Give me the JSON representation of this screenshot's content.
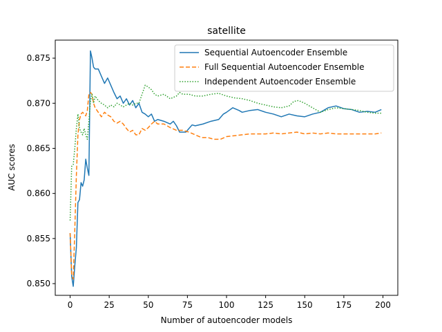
{
  "chart_data": {
    "type": "line",
    "title": "satellite",
    "xlabel": "Number of autoencoder models",
    "ylabel": "AUC scores",
    "xlim": [
      -9.5,
      209.5
    ],
    "ylim": [
      0.8487,
      0.877
    ],
    "xticks": [
      0,
      25,
      50,
      75,
      100,
      125,
      150,
      175,
      200
    ],
    "yticks": [
      0.85,
      0.855,
      0.86,
      0.865,
      0.87,
      0.875
    ],
    "ytick_labels": [
      "0.850",
      "0.855",
      "0.860",
      "0.865",
      "0.870",
      "0.875"
    ],
    "grid": false,
    "legend_position": "top-right",
    "series": [
      {
        "name": "Sequential Autoencoder Ensemble",
        "color": "#1f77b4",
        "style": "solid",
        "points": [
          [
            0,
            0.8556
          ],
          [
            1,
            0.8508
          ],
          [
            2,
            0.8497
          ],
          [
            3,
            0.852
          ],
          [
            4,
            0.854
          ],
          [
            5,
            0.859
          ],
          [
            6,
            0.8593
          ],
          [
            7,
            0.8612
          ],
          [
            8,
            0.8608
          ],
          [
            9,
            0.8615
          ],
          [
            10,
            0.8638
          ],
          [
            11,
            0.8628
          ],
          [
            12,
            0.862
          ],
          [
            13,
            0.8758
          ],
          [
            14,
            0.875
          ],
          [
            15,
            0.874
          ],
          [
            16,
            0.8738
          ],
          [
            18,
            0.8738
          ],
          [
            20,
            0.873
          ],
          [
            22,
            0.8722
          ],
          [
            24,
            0.8728
          ],
          [
            26,
            0.872
          ],
          [
            28,
            0.8712
          ],
          [
            30,
            0.8705
          ],
          [
            32,
            0.8708
          ],
          [
            34,
            0.87
          ],
          [
            36,
            0.8705
          ],
          [
            38,
            0.8698
          ],
          [
            40,
            0.8703
          ],
          [
            42,
            0.8695
          ],
          [
            44,
            0.87
          ],
          [
            46,
            0.869
          ],
          [
            48,
            0.8688
          ],
          [
            50,
            0.8685
          ],
          [
            52,
            0.8688
          ],
          [
            54,
            0.868
          ],
          [
            56,
            0.8682
          ],
          [
            60,
            0.868
          ],
          [
            64,
            0.8677
          ],
          [
            66,
            0.868
          ],
          [
            68,
            0.8675
          ],
          [
            70,
            0.8668
          ],
          [
            74,
            0.8668
          ],
          [
            76,
            0.8672
          ],
          [
            78,
            0.8676
          ],
          [
            80,
            0.8675
          ],
          [
            85,
            0.8677
          ],
          [
            90,
            0.868
          ],
          [
            95,
            0.8682
          ],
          [
            98,
            0.8688
          ],
          [
            100,
            0.869
          ],
          [
            104,
            0.8695
          ],
          [
            108,
            0.8692
          ],
          [
            110,
            0.869
          ],
          [
            115,
            0.8692
          ],
          [
            120,
            0.8693
          ],
          [
            125,
            0.869
          ],
          [
            130,
            0.8688
          ],
          [
            135,
            0.8685
          ],
          [
            140,
            0.8688
          ],
          [
            145,
            0.8686
          ],
          [
            150,
            0.8685
          ],
          [
            155,
            0.8688
          ],
          [
            160,
            0.869
          ],
          [
            165,
            0.8695
          ],
          [
            170,
            0.8697
          ],
          [
            175,
            0.8694
          ],
          [
            180,
            0.8693
          ],
          [
            185,
            0.869
          ],
          [
            190,
            0.8691
          ],
          [
            195,
            0.869
          ],
          [
            199,
            0.8693
          ]
        ]
      },
      {
        "name": "Full Sequential Autoencoder Ensemble",
        "color": "#ff7f0e",
        "style": "dashed",
        "points": [
          [
            0,
            0.8556
          ],
          [
            1,
            0.851
          ],
          [
            2,
            0.8505
          ],
          [
            3,
            0.856
          ],
          [
            4,
            0.862
          ],
          [
            5,
            0.8665
          ],
          [
            6,
            0.8682
          ],
          [
            7,
            0.8688
          ],
          [
            8,
            0.869
          ],
          [
            9,
            0.8688
          ],
          [
            10,
            0.8686
          ],
          [
            11,
            0.8692
          ],
          [
            12,
            0.871
          ],
          [
            13,
            0.8712
          ],
          [
            14,
            0.871
          ],
          [
            15,
            0.87
          ],
          [
            16,
            0.8695
          ],
          [
            18,
            0.869
          ],
          [
            20,
            0.8685
          ],
          [
            22,
            0.869
          ],
          [
            24,
            0.8687
          ],
          [
            26,
            0.8685
          ],
          [
            28,
            0.868
          ],
          [
            30,
            0.8678
          ],
          [
            32,
            0.868
          ],
          [
            34,
            0.8677
          ],
          [
            36,
            0.8672
          ],
          [
            38,
            0.8668
          ],
          [
            40,
            0.867
          ],
          [
            42,
            0.8665
          ],
          [
            44,
            0.8665
          ],
          [
            46,
            0.8672
          ],
          [
            48,
            0.867
          ],
          [
            50,
            0.8673
          ],
          [
            52,
            0.8677
          ],
          [
            54,
            0.868
          ],
          [
            56,
            0.8677
          ],
          [
            60,
            0.8677
          ],
          [
            64,
            0.8673
          ],
          [
            68,
            0.867
          ],
          [
            72,
            0.867
          ],
          [
            76,
            0.8668
          ],
          [
            80,
            0.8665
          ],
          [
            84,
            0.8662
          ],
          [
            88,
            0.8662
          ],
          [
            92,
            0.866
          ],
          [
            96,
            0.866
          ],
          [
            100,
            0.8663
          ],
          [
            105,
            0.8664
          ],
          [
            110,
            0.8665
          ],
          [
            115,
            0.8666
          ],
          [
            120,
            0.8666
          ],
          [
            125,
            0.8666
          ],
          [
            130,
            0.8667
          ],
          [
            135,
            0.8666
          ],
          [
            140,
            0.8667
          ],
          [
            145,
            0.8668
          ],
          [
            150,
            0.8666
          ],
          [
            155,
            0.8667
          ],
          [
            160,
            0.8666
          ],
          [
            165,
            0.8667
          ],
          [
            170,
            0.8666
          ],
          [
            175,
            0.8666
          ],
          [
            180,
            0.8666
          ],
          [
            185,
            0.8666
          ],
          [
            190,
            0.8666
          ],
          [
            195,
            0.8666
          ],
          [
            199,
            0.8667
          ]
        ]
      },
      {
        "name": "Independent Autoencoder Ensemble",
        "color": "#2ca02c",
        "style": "dotted",
        "points": [
          [
            0,
            0.857
          ],
          [
            1,
            0.863
          ],
          [
            2,
            0.8632
          ],
          [
            3,
            0.865
          ],
          [
            4,
            0.8672
          ],
          [
            5,
            0.8688
          ],
          [
            6,
            0.8672
          ],
          [
            7,
            0.8668
          ],
          [
            8,
            0.8665
          ],
          [
            9,
            0.8672
          ],
          [
            10,
            0.8665
          ],
          [
            11,
            0.866
          ],
          [
            12,
            0.868
          ],
          [
            13,
            0.8702
          ],
          [
            14,
            0.871
          ],
          [
            15,
            0.87
          ],
          [
            16,
            0.8708
          ],
          [
            18,
            0.8703
          ],
          [
            20,
            0.87
          ],
          [
            22,
            0.8698
          ],
          [
            24,
            0.8695
          ],
          [
            26,
            0.8698
          ],
          [
            28,
            0.8696
          ],
          [
            30,
            0.87
          ],
          [
            32,
            0.8698
          ],
          [
            34,
            0.8696
          ],
          [
            36,
            0.8698
          ],
          [
            38,
            0.87
          ],
          [
            40,
            0.8698
          ],
          [
            42,
            0.87
          ],
          [
            44,
            0.87
          ],
          [
            46,
            0.871
          ],
          [
            48,
            0.872
          ],
          [
            50,
            0.8718
          ],
          [
            52,
            0.8715
          ],
          [
            54,
            0.871
          ],
          [
            56,
            0.8708
          ],
          [
            60,
            0.871
          ],
          [
            64,
            0.8705
          ],
          [
            68,
            0.8708
          ],
          [
            70,
            0.8712
          ],
          [
            72,
            0.871
          ],
          [
            76,
            0.871
          ],
          [
            80,
            0.8708
          ],
          [
            85,
            0.8708
          ],
          [
            90,
            0.871
          ],
          [
            95,
            0.8711
          ],
          [
            100,
            0.8708
          ],
          [
            105,
            0.8706
          ],
          [
            110,
            0.8705
          ],
          [
            115,
            0.8703
          ],
          [
            120,
            0.87
          ],
          [
            125,
            0.8698
          ],
          [
            130,
            0.8696
          ],
          [
            135,
            0.8695
          ],
          [
            140,
            0.8697
          ],
          [
            143,
            0.8702
          ],
          [
            146,
            0.8703
          ],
          [
            150,
            0.87
          ],
          [
            155,
            0.8695
          ],
          [
            160,
            0.869
          ],
          [
            165,
            0.8693
          ],
          [
            170,
            0.8695
          ],
          [
            175,
            0.8694
          ],
          [
            180,
            0.8693
          ],
          [
            185,
            0.8692
          ],
          [
            190,
            0.869
          ],
          [
            195,
            0.8689
          ],
          [
            199,
            0.8689
          ]
        ]
      }
    ]
  }
}
